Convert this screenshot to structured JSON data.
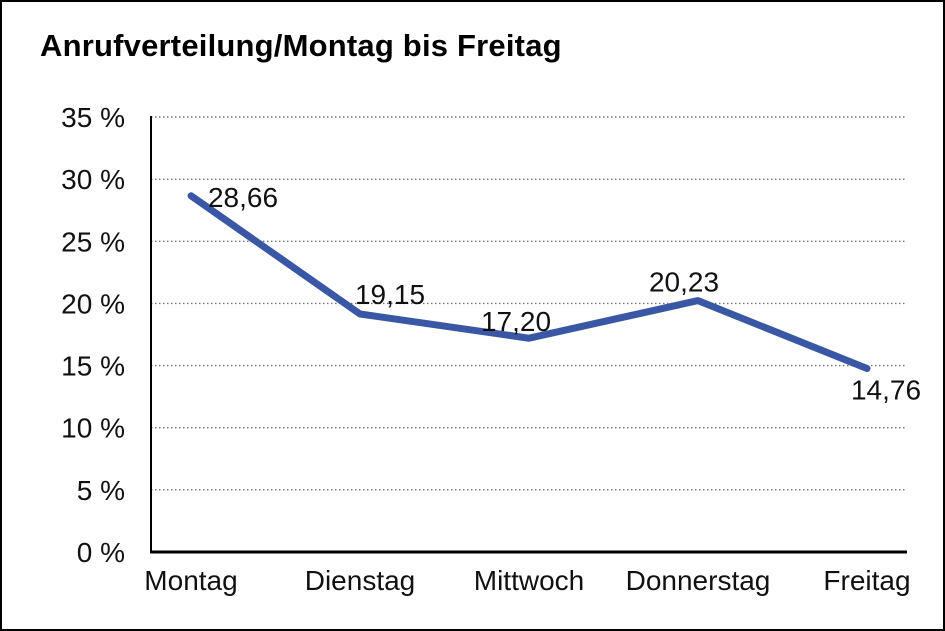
{
  "window": {
    "background": "#ffffff",
    "border_color": "#000000"
  },
  "header": {
    "title": "Anrufverteilung/Montag bis Freitag"
  },
  "chart_data": {
    "type": "line",
    "title": "Anrufverteilung/Montag bis Freitag",
    "categories": [
      "Montag",
      "Dienstag",
      "Mittwoch",
      "Donnerstag",
      "Freitag"
    ],
    "series": [
      {
        "name": "Anrufverteilung",
        "values": [
          28.66,
          19.15,
          17.2,
          20.23,
          14.76
        ],
        "point_labels": [
          "28,66",
          "19,15",
          "17,20",
          "20,23",
          "14,76"
        ]
      }
    ],
    "xlabel": "",
    "ylabel": "",
    "ylim": [
      0,
      35
    ],
    "y_ticks": [
      {
        "value": 0,
        "label": "0 %"
      },
      {
        "value": 5,
        "label": "5 %"
      },
      {
        "value": 10,
        "label": "10 %"
      },
      {
        "value": 15,
        "label": "15 %"
      },
      {
        "value": 20,
        "label": "20 %"
      },
      {
        "value": 25,
        "label": "25 %"
      },
      {
        "value": 30,
        "label": "30 %"
      },
      {
        "value": 35,
        "label": "35 %"
      }
    ],
    "grid": "horizontal-dotted",
    "legend": "none",
    "colors": {
      "line": "#3a57a5",
      "grid": "#737373",
      "axis": "#000000",
      "text": "#111111"
    }
  }
}
